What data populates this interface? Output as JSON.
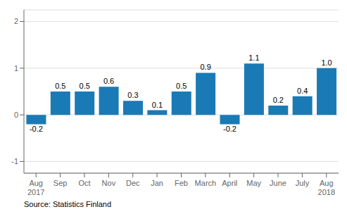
{
  "chart_data": {
    "type": "bar",
    "categories": [
      "Aug\n2017",
      "Sep",
      "Oct",
      "Nov",
      "Dec",
      "Jan",
      "Feb",
      "March",
      "April",
      "May",
      "June",
      "July",
      "Aug\n2018"
    ],
    "values": [
      -0.2,
      0.5,
      0.5,
      0.6,
      0.3,
      0.1,
      0.5,
      0.9,
      -0.2,
      1.1,
      0.2,
      0.4,
      1.0
    ],
    "value_labels": [
      "-0.2",
      "0.5",
      "0.5",
      "0.6",
      "0.3",
      "0.1",
      "0.5",
      "0.9",
      "-0.2",
      "1.1",
      "0.2",
      "0.4",
      "1.0"
    ],
    "data_labels": true,
    "color": "#1a7ab5",
    "ylim": [
      -1.25,
      2.25
    ],
    "yticks": [
      -1,
      0,
      1,
      2
    ],
    "grid": true,
    "annotations": [
      "Source: Statistics Finland"
    ]
  }
}
